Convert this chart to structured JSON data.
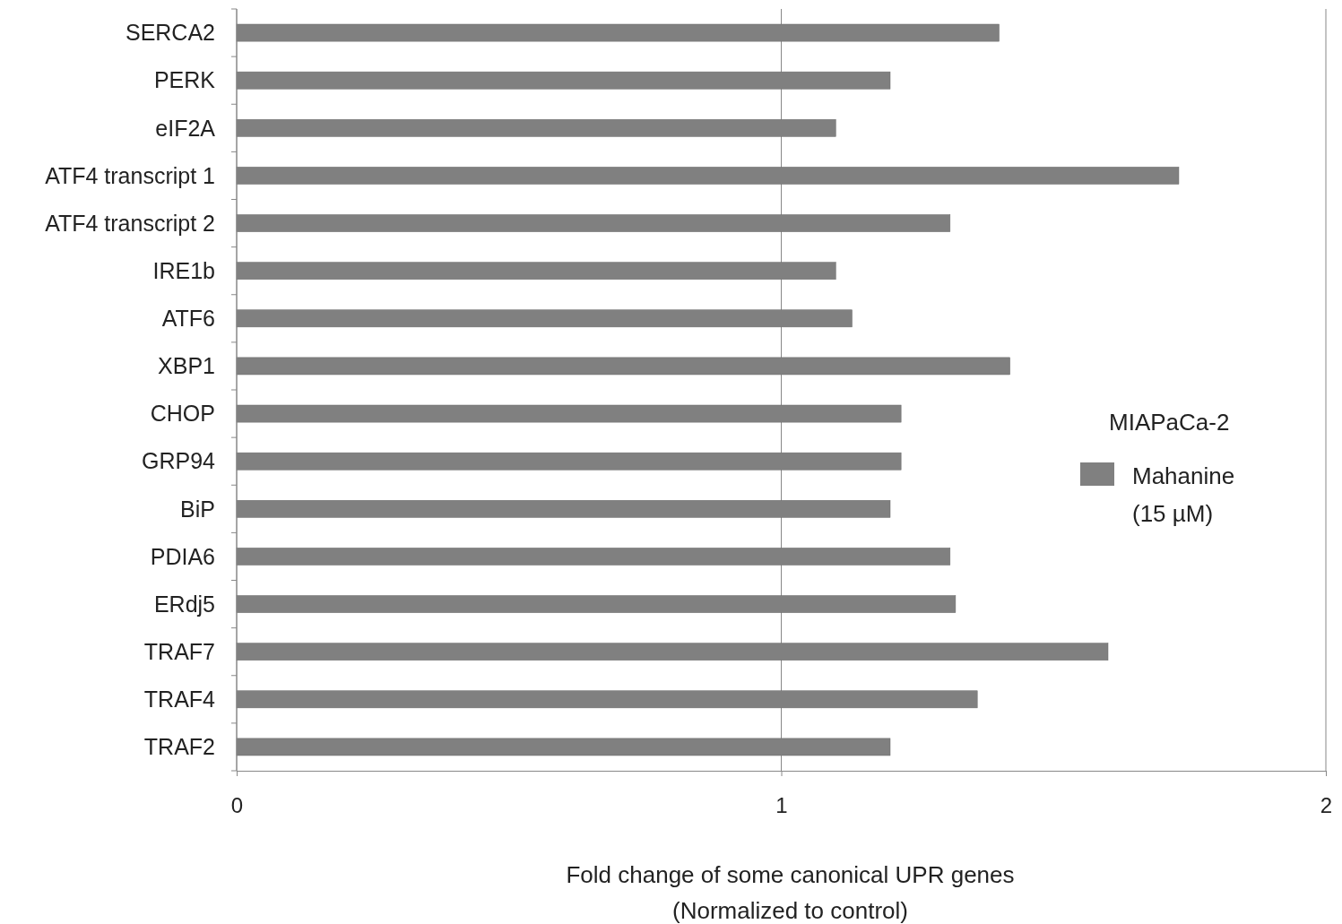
{
  "chart_data": {
    "type": "bar",
    "orientation": "horizontal",
    "xlabel": "Fold change of some canonical UPR genes\n(Normalized to control)",
    "legend_title": "MIAPaCa-2",
    "legend": "right",
    "categories": [
      "SERCA2",
      "PERK",
      "eIF2A",
      "ATF4 transcript 1",
      "ATF4 transcript 2",
      "IRE1b",
      "ATF6",
      "XBP1",
      "CHOP",
      "GRP94",
      "BiP",
      "PDIA6",
      "ERdj5",
      "TRAF7",
      "TRAF4",
      "TRAF2"
    ],
    "series": [
      {
        "name": "Mahanine (15 µM)",
        "color": "#808080",
        "values": [
          1.4,
          1.2,
          1.1,
          1.73,
          1.31,
          1.1,
          1.13,
          1.42,
          1.22,
          1.22,
          1.2,
          1.31,
          1.32,
          1.6,
          1.36,
          1.2
        ]
      }
    ],
    "xlim": [
      0,
      2
    ],
    "xticks": [
      0,
      1,
      2
    ],
    "grid": "x"
  }
}
